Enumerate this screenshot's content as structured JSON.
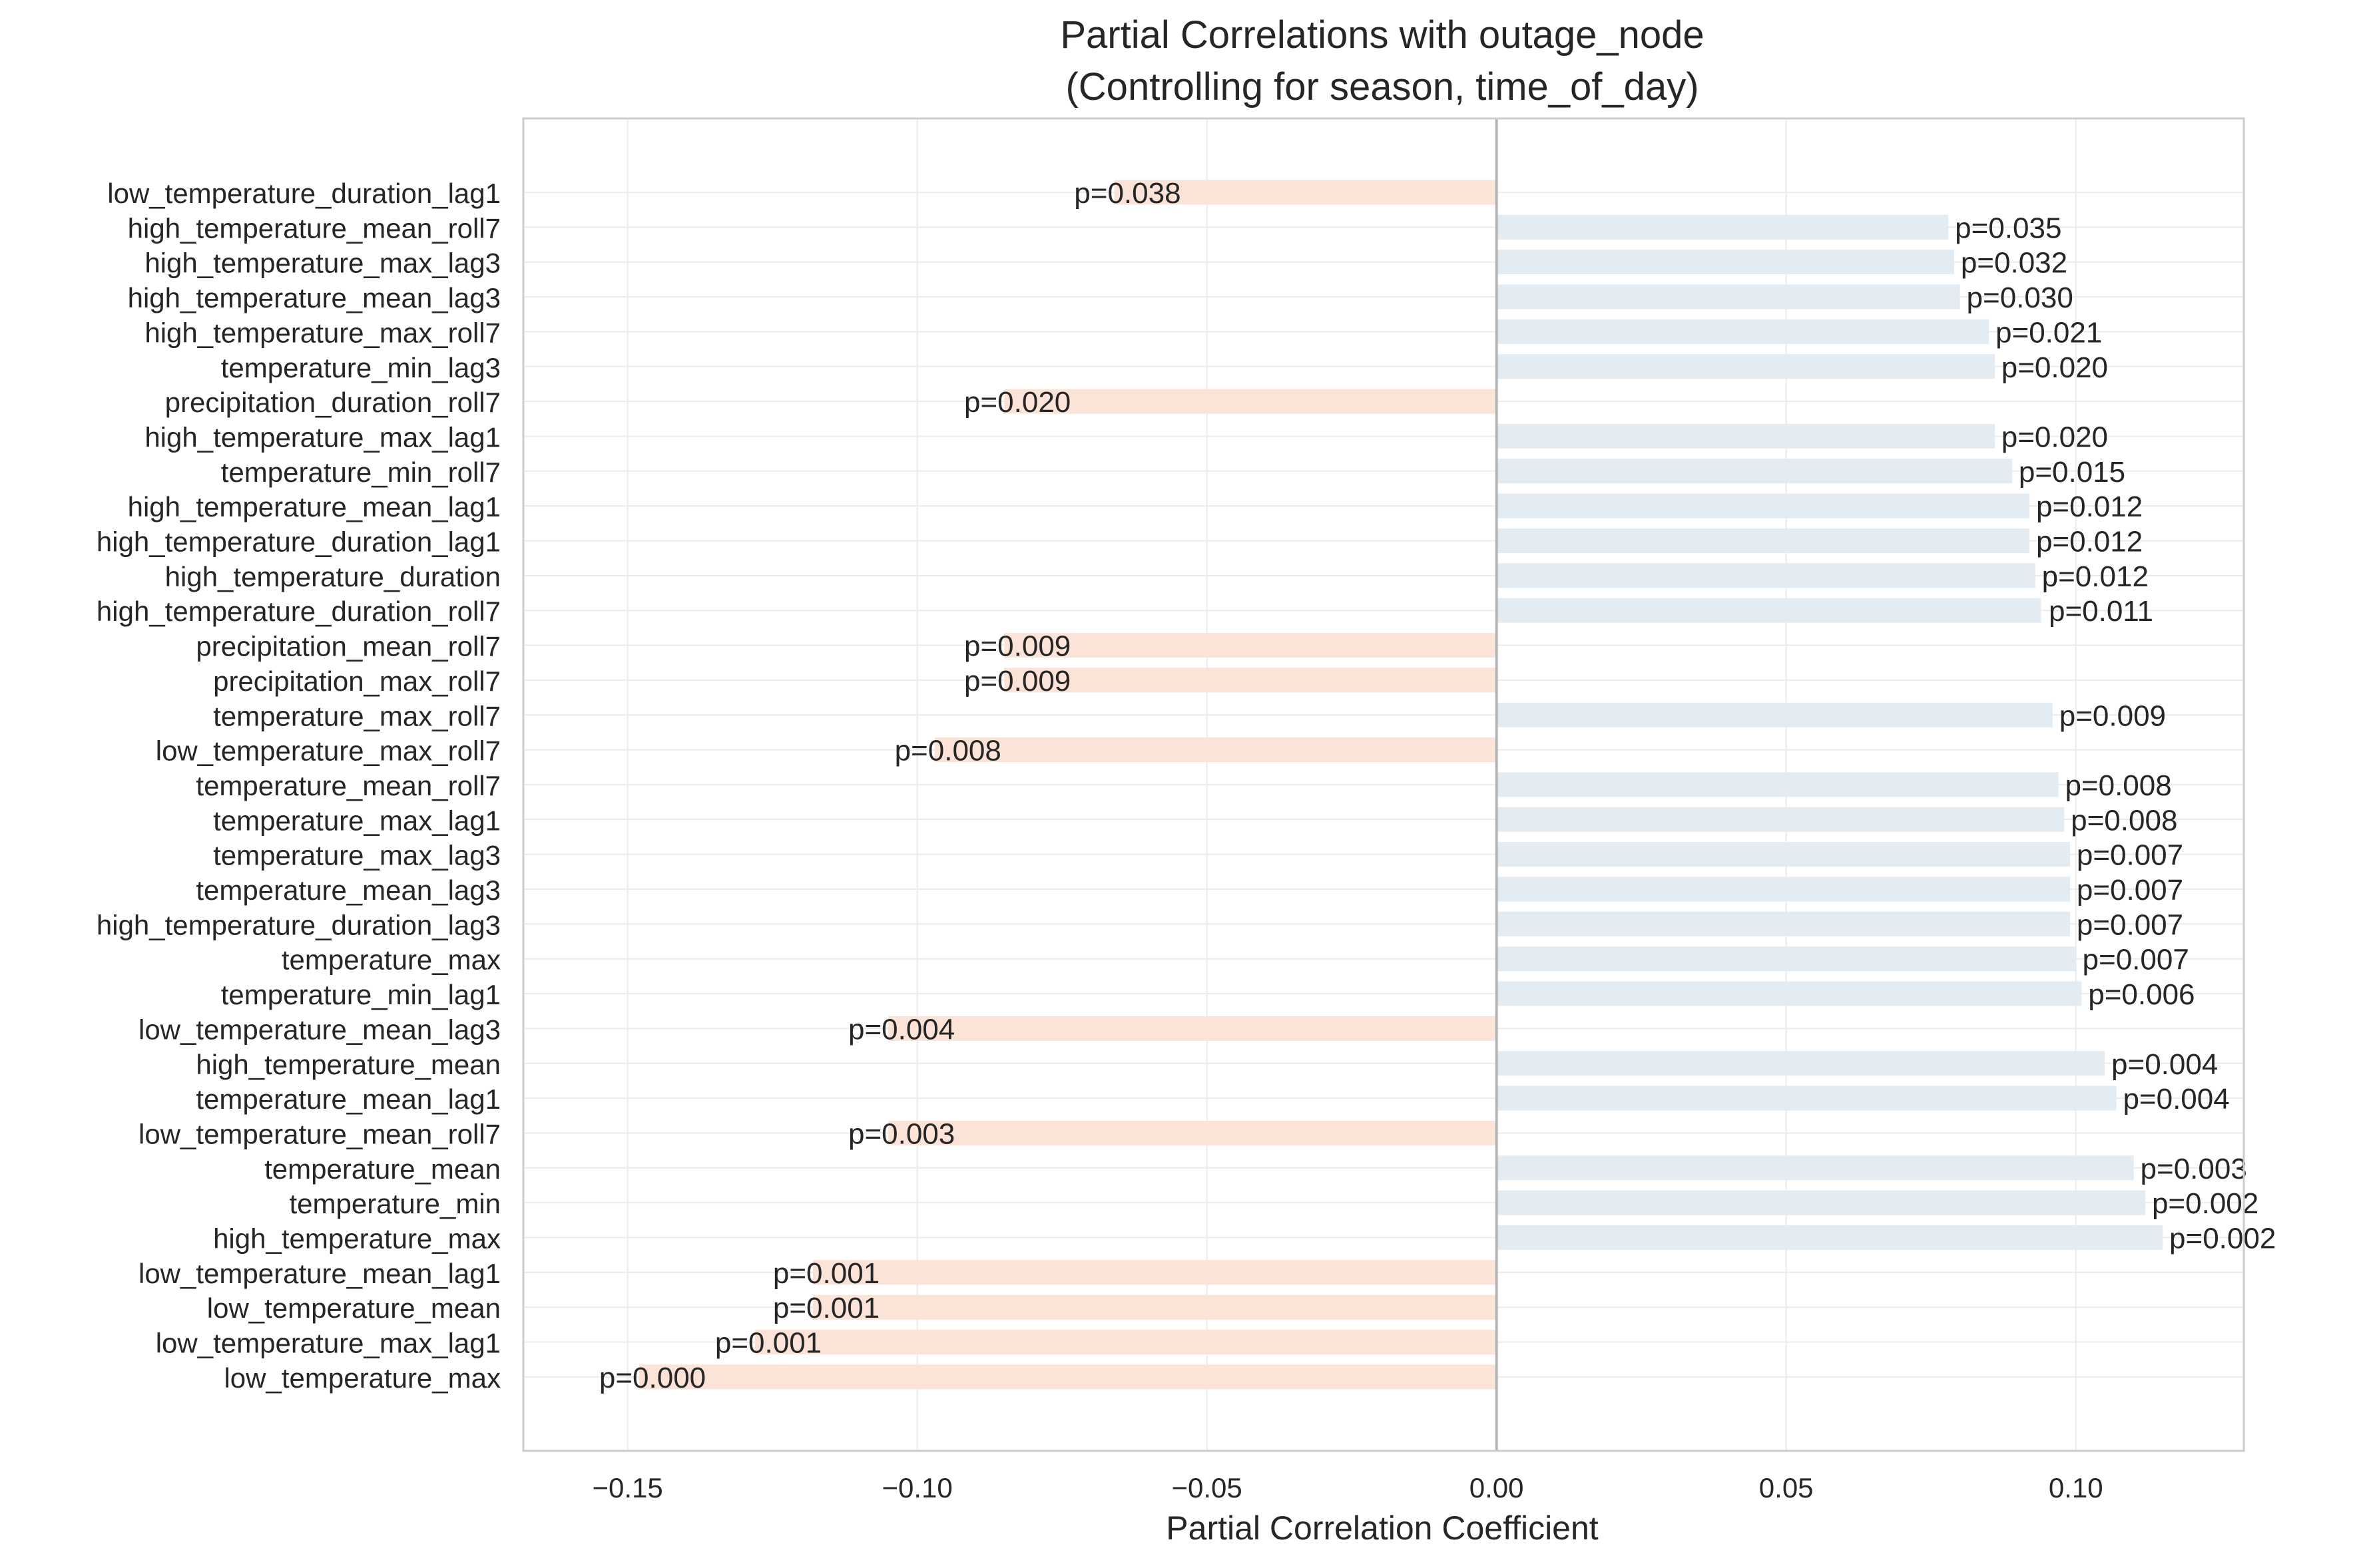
{
  "chart_data": {
    "type": "bar",
    "orientation": "horizontal",
    "title": "Partial Correlations with outage_node",
    "subtitle": "(Controlling for season, time_of_day)",
    "xlabel": "Partial Correlation Coefficient",
    "ylabel": "",
    "xlim": [
      -0.168,
      0.129
    ],
    "xticks": [
      -0.15,
      -0.1,
      -0.05,
      0.0,
      0.05,
      0.1
    ],
    "xtick_labels": [
      "−0.15",
      "−0.10",
      "−0.05",
      "0.00",
      "0.05",
      "0.10"
    ],
    "grid": true,
    "legend": "none",
    "colors": {
      "positive": "#e3ecf3",
      "negative": "#fbe3d8",
      "zero_line": "#b4b4b4",
      "grid": "#ebebeb",
      "frame": "#cccccc",
      "text": "#262626"
    },
    "categories": [
      "low_temperature_duration_lag1",
      "high_temperature_mean_roll7",
      "high_temperature_max_lag3",
      "high_temperature_mean_lag3",
      "high_temperature_max_roll7",
      "temperature_min_lag3",
      "precipitation_duration_roll7",
      "high_temperature_max_lag1",
      "temperature_min_roll7",
      "high_temperature_mean_lag1",
      "high_temperature_duration_lag1",
      "high_temperature_duration",
      "high_temperature_duration_roll7",
      "precipitation_mean_roll7",
      "precipitation_max_roll7",
      "temperature_max_roll7",
      "low_temperature_max_roll7",
      "temperature_mean_roll7",
      "temperature_max_lag1",
      "temperature_max_lag3",
      "temperature_mean_lag3",
      "high_temperature_duration_lag3",
      "temperature_max",
      "temperature_min_lag1",
      "low_temperature_mean_lag3",
      "high_temperature_mean",
      "temperature_mean_lag1",
      "low_temperature_mean_roll7",
      "temperature_mean",
      "temperature_min",
      "high_temperature_max",
      "low_temperature_mean_lag1",
      "low_temperature_mean",
      "low_temperature_max_lag1",
      "low_temperature_max"
    ],
    "values": [
      -0.066,
      0.078,
      0.079,
      0.08,
      0.085,
      0.086,
      -0.085,
      0.086,
      0.089,
      0.092,
      0.092,
      0.093,
      0.094,
      -0.085,
      -0.085,
      0.096,
      -0.097,
      0.097,
      0.098,
      0.099,
      0.099,
      0.099,
      0.1,
      0.101,
      -0.105,
      0.105,
      0.107,
      -0.105,
      0.11,
      0.112,
      0.115,
      -0.118,
      -0.118,
      -0.128,
      -0.148
    ],
    "pvalue_labels": [
      "p=0.038",
      "p=0.035",
      "p=0.032",
      "p=0.030",
      "p=0.021",
      "p=0.020",
      "p=0.020",
      "p=0.020",
      "p=0.015",
      "p=0.012",
      "p=0.012",
      "p=0.012",
      "p=0.011",
      "p=0.009",
      "p=0.009",
      "p=0.009",
      "p=0.008",
      "p=0.008",
      "p=0.008",
      "p=0.007",
      "p=0.007",
      "p=0.007",
      "p=0.007",
      "p=0.006",
      "p=0.004",
      "p=0.004",
      "p=0.004",
      "p=0.003",
      "p=0.003",
      "p=0.002",
      "p=0.002",
      "p=0.001",
      "p=0.001",
      "p=0.001",
      "p=0.000"
    ]
  }
}
